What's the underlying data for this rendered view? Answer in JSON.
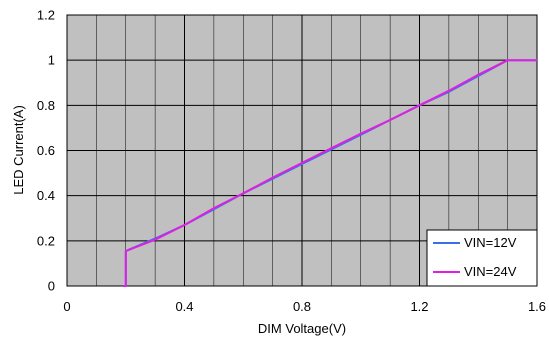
{
  "chart_data": {
    "type": "line",
    "title": "",
    "xlabel": "DIM Voltage(V)",
    "ylabel": "LED Current(A)",
    "xlim": [
      0,
      1.6
    ],
    "ylim": [
      0,
      1.2
    ],
    "x_ticks": [
      0,
      0.4,
      0.8,
      1.2,
      1.6
    ],
    "y_ticks": [
      0,
      0.2,
      0.4,
      0.6,
      0.8,
      1,
      1.2
    ],
    "x_tick_labels": [
      "0",
      "0.4",
      "0.8",
      "1.2",
      "1.6"
    ],
    "y_tick_labels": [
      "0",
      "0.2",
      "0.4",
      "0.6",
      "0.8",
      "1",
      "1.2"
    ],
    "grid": true,
    "plot_background": "#c0c0c0",
    "legend_position": "bottom-right",
    "series": [
      {
        "name": "VIN=12V",
        "color": "#3a6fe8",
        "x": [
          0.19,
          0.2,
          0.2,
          0.3,
          0.4,
          0.5,
          0.6,
          0.7,
          0.8,
          0.9,
          1.0,
          1.1,
          1.2,
          1.3,
          1.4,
          1.5,
          1.6
        ],
        "y": [
          0.0,
          0.0,
          0.155,
          0.21,
          0.27,
          0.34,
          0.41,
          0.475,
          0.54,
          0.605,
          0.67,
          0.735,
          0.8,
          0.86,
          0.93,
          1.0,
          1.0
        ]
      },
      {
        "name": "VIN=24V",
        "color": "#e020e0",
        "x": [
          0.19,
          0.2,
          0.2,
          0.3,
          0.4,
          0.5,
          0.6,
          0.7,
          0.8,
          0.9,
          1.0,
          1.1,
          1.2,
          1.3,
          1.4,
          1.5,
          1.6
        ],
        "y": [
          0.0,
          0.0,
          0.155,
          0.205,
          0.27,
          0.345,
          0.41,
          0.48,
          0.545,
          0.61,
          0.675,
          0.735,
          0.8,
          0.865,
          0.935,
          1.0,
          1.0
        ]
      }
    ]
  }
}
